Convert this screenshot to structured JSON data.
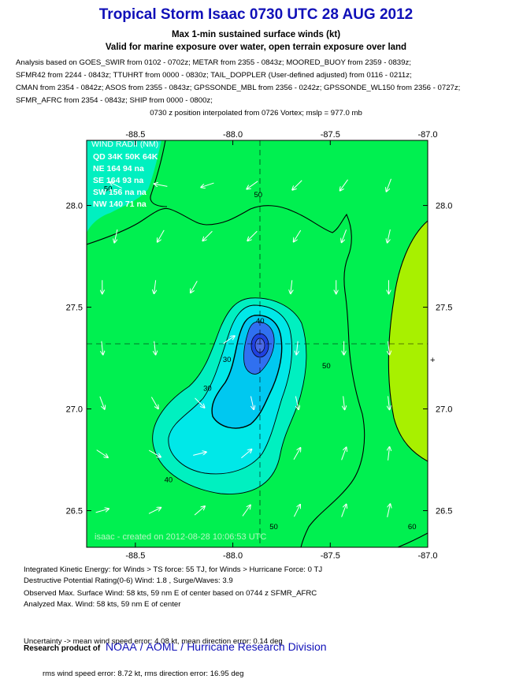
{
  "header": {
    "title": "Tropical Storm Isaac 0730 UTC 28 AUG 2012",
    "subtitle": "Max 1-min sustained surface winds (kt)",
    "exposure": "Valid for marine exposure over water, open terrain exposure over land"
  },
  "analysis_lines": [
    "Analysis based on GOES_SWIR from 0102 - 0702z; METAR from 2355 - 0843z; MOORED_BUOY from 2359 - 0839z;",
    "SFMR42 from 2244 - 0843z; TTUHRT from 0000 - 0830z; TAIL_DOPPLER (User-defined adjusted) from 0116 - 0211z;",
    "CMAN from 2354 - 0842z; ASOS from 2355 - 0843z; GPSSONDE_MBL from 2356 - 0242z; GPSSONDE_WL150 from 2356 - 0727z;",
    "SFMR_AFRC from 2354 - 0843z; SHIP from 0000 - 0800z;"
  ],
  "position_note": "0730 z position interpolated from 0726 Vortex; mslp = 977.0 mb",
  "wind_radii": {
    "title": "WIND RADII (NM)",
    "header": "QD  34K  50K  64K",
    "rows": [
      "NE  164   94    na",
      "SE  164   93    na",
      "SW 156    na    na",
      "NW 140    71    na"
    ]
  },
  "watermark": "isaac - created on 2012-08-28 10:06:53 UTC",
  "info_block_1": [
    "Integrated Kinetic Energy: for Winds > TS force: 55 TJ, for Winds > Hurricane Force: 0 TJ",
    "Destructive Potential Rating(0-6)  Wind: 1.8 , Surge/Waves: 3.9"
  ],
  "info_block_2": [
    "Observed Max. Surface Wind: 58 kts, 59 nm E of center based on 0744 z SFMR_AFRC",
    "Analyzed Max. Wind: 58 kts, 59 nm  E of center"
  ],
  "info_block_3": [
    "Uncertainty -> mean wind speed error: 4.08 kt, mean direction error: 0.14 deg",
    "         rms wind speed error: 8.72 kt, rms direction error: 16.95 deg"
  ],
  "footer": {
    "prefix": "Research product of",
    "links": [
      "NOAA",
      "AOML",
      "Hurricane Research Division"
    ]
  },
  "colors": {
    "title": "#1010b8",
    "field_green": "#00f050",
    "field_yellow_green": "#a8f000",
    "field_cyan_outer": "#00f0c0",
    "field_cyan": "#00e8e8",
    "field_sky": "#00c8f0",
    "field_blue": "#3070f0",
    "field_core": "#2040e0"
  },
  "chart_data": {
    "type": "contour",
    "x_axis": {
      "range": [
        -88.75,
        -87.0
      ],
      "ticks": [
        -88.5,
        -88.0,
        -87.5,
        -87.0
      ],
      "tick_labels": [
        "-88.5",
        "-88.0",
        "-87.5",
        "-87.0"
      ]
    },
    "y_axis": {
      "range": [
        26.32,
        28.32
      ],
      "ticks": [
        26.5,
        27.0,
        27.5,
        28.0
      ],
      "tick_labels": [
        "26.5",
        "27.0",
        "27.5",
        "28.0"
      ]
    },
    "center": {
      "lon": -88.0,
      "lat": 27.33
    },
    "contour_labels": [
      {
        "text": "50",
        "lon": -87.87,
        "lat": 28.04
      },
      {
        "text": "50",
        "lon": -88.64,
        "lat": 28.07
      },
      {
        "text": "40",
        "lon": -87.86,
        "lat": 27.42
      },
      {
        "text": "30",
        "lon": -88.03,
        "lat": 27.23
      },
      {
        "text": "30",
        "lon": -88.13,
        "lat": 27.09
      },
      {
        "text": "50",
        "lon": -87.52,
        "lat": 27.2
      },
      {
        "text": "40",
        "lon": -88.33,
        "lat": 26.64
      },
      {
        "text": "50",
        "lon": -87.79,
        "lat": 26.41
      },
      {
        "text": "60",
        "lon": -87.08,
        "lat": 26.41
      }
    ],
    "wind_vectors": [
      {
        "lon": -88.6,
        "lat": 28.1,
        "u": -0.6,
        "v": 0.3
      },
      {
        "lon": -88.37,
        "lat": 28.1,
        "u": -0.5,
        "v": 0.1
      },
      {
        "lon": -88.13,
        "lat": 28.1,
        "u": -0.6,
        "v": -0.2
      },
      {
        "lon": -87.9,
        "lat": 28.1,
        "u": -0.7,
        "v": -0.5
      },
      {
        "lon": -87.67,
        "lat": 28.1,
        "u": -0.6,
        "v": -0.6
      },
      {
        "lon": -87.43,
        "lat": 28.1,
        "u": -0.5,
        "v": -0.7
      },
      {
        "lon": -87.2,
        "lat": 28.1,
        "u": -0.3,
        "v": -0.8
      },
      {
        "lon": -88.6,
        "lat": 27.85,
        "u": -0.2,
        "v": -0.9
      },
      {
        "lon": -88.37,
        "lat": 27.85,
        "u": -0.4,
        "v": -0.7
      },
      {
        "lon": -88.13,
        "lat": 27.85,
        "u": -0.5,
        "v": -0.5
      },
      {
        "lon": -87.9,
        "lat": 27.85,
        "u": -0.6,
        "v": -0.6
      },
      {
        "lon": -87.67,
        "lat": 27.85,
        "u": -0.5,
        "v": -0.8
      },
      {
        "lon": -87.43,
        "lat": 27.85,
        "u": -0.3,
        "v": -0.8
      },
      {
        "lon": -87.2,
        "lat": 27.85,
        "u": -0.2,
        "v": -0.9
      },
      {
        "lon": -88.67,
        "lat": 27.6,
        "u": 0.0,
        "v": -1.0
      },
      {
        "lon": -88.4,
        "lat": 27.6,
        "u": -0.1,
        "v": -0.8
      },
      {
        "lon": -88.2,
        "lat": 27.6,
        "u": -0.4,
        "v": -0.7
      },
      {
        "lon": -87.7,
        "lat": 27.6,
        "u": -0.1,
        "v": -0.9
      },
      {
        "lon": -87.47,
        "lat": 27.6,
        "u": 0.0,
        "v": -1.0
      },
      {
        "lon": -87.2,
        "lat": 27.6,
        "u": 0.0,
        "v": -1.0
      },
      {
        "lon": -88.67,
        "lat": 27.3,
        "u": 0.1,
        "v": -0.9
      },
      {
        "lon": -88.4,
        "lat": 27.3,
        "u": 0.1,
        "v": -0.9
      },
      {
        "lon": -87.67,
        "lat": 27.3,
        "u": -0.1,
        "v": -0.9
      },
      {
        "lon": -87.43,
        "lat": 27.3,
        "u": 0.0,
        "v": -1.0
      },
      {
        "lon": -87.2,
        "lat": 27.3,
        "u": 0.1,
        "v": -0.9
      },
      {
        "lon": -88.67,
        "lat": 27.03,
        "u": 0.3,
        "v": -0.8
      },
      {
        "lon": -88.4,
        "lat": 27.03,
        "u": 0.4,
        "v": -0.7
      },
      {
        "lon": -88.17,
        "lat": 27.03,
        "u": 0.5,
        "v": -0.5
      },
      {
        "lon": -87.9,
        "lat": 27.03,
        "u": 0.2,
        "v": -0.9
      },
      {
        "lon": -87.67,
        "lat": 27.03,
        "u": 0.2,
        "v": -0.9
      },
      {
        "lon": -87.43,
        "lat": 27.03,
        "u": 0.1,
        "v": -0.9
      },
      {
        "lon": -87.2,
        "lat": 27.03,
        "u": 0.1,
        "v": -0.9
      },
      {
        "lon": -88.67,
        "lat": 26.78,
        "u": 0.6,
        "v": -0.4
      },
      {
        "lon": -88.4,
        "lat": 26.78,
        "u": 0.7,
        "v": -0.4
      },
      {
        "lon": -88.17,
        "lat": 26.78,
        "u": 0.8,
        "v": 0.2
      },
      {
        "lon": -87.93,
        "lat": 26.78,
        "u": 0.6,
        "v": 0.5
      },
      {
        "lon": -87.67,
        "lat": 26.78,
        "u": 0.4,
        "v": 0.7
      },
      {
        "lon": -87.43,
        "lat": 26.78,
        "u": 0.3,
        "v": 0.8
      },
      {
        "lon": -87.2,
        "lat": 26.78,
        "u": 0.1,
        "v": 0.9
      },
      {
        "lon": -88.67,
        "lat": 26.5,
        "u": 0.7,
        "v": 0.2
      },
      {
        "lon": -88.4,
        "lat": 26.5,
        "u": 0.8,
        "v": 0.4
      },
      {
        "lon": -88.17,
        "lat": 26.5,
        "u": 0.7,
        "v": 0.6
      },
      {
        "lon": -87.93,
        "lat": 26.5,
        "u": 0.5,
        "v": 0.7
      },
      {
        "lon": -87.67,
        "lat": 26.5,
        "u": 0.4,
        "v": 0.8
      },
      {
        "lon": -87.43,
        "lat": 26.5,
        "u": 0.3,
        "v": 0.8
      },
      {
        "lon": -87.2,
        "lat": 26.5,
        "u": 0.2,
        "v": 0.9
      },
      {
        "lon": -88.02,
        "lat": 27.34,
        "u": 0.6,
        "v": 0.4
      }
    ]
  }
}
